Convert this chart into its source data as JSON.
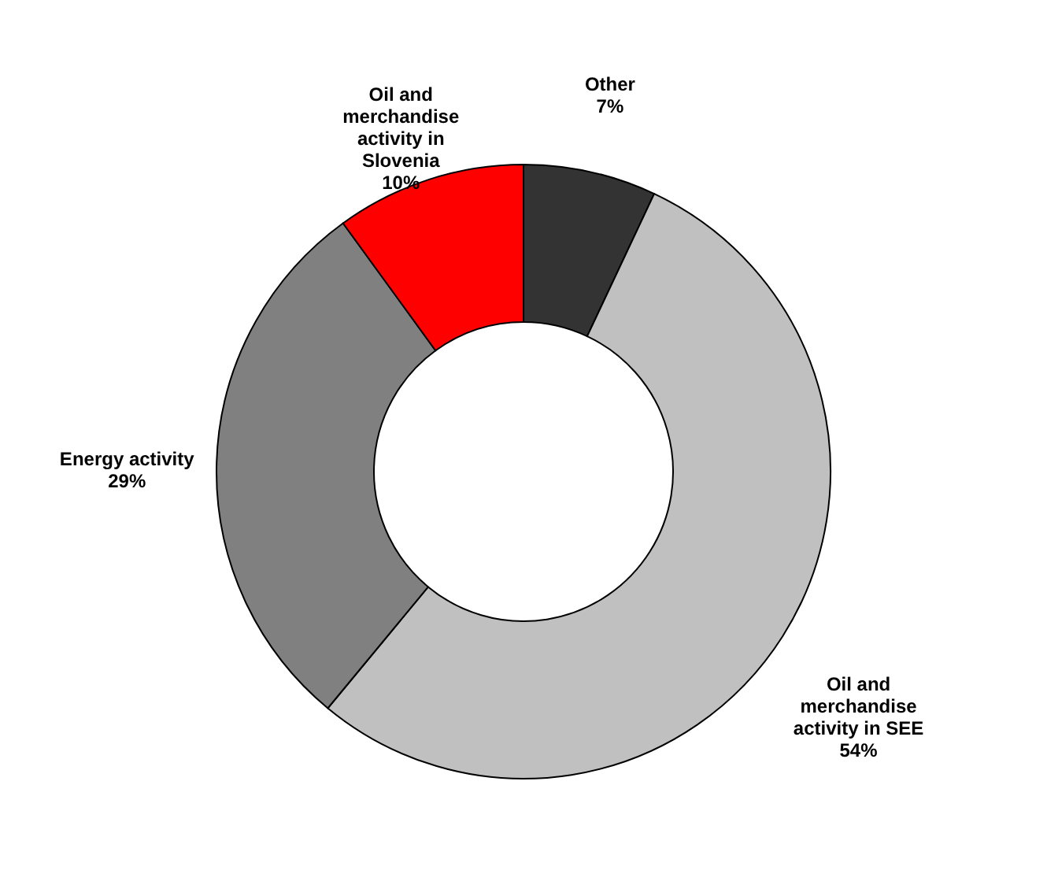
{
  "chart_data": {
    "type": "donut",
    "categories": [
      "Other",
      "Oil and merchandise activity in SEE",
      "Energy activity",
      "Oil and merchandise activity in Slovenia"
    ],
    "values": [
      7,
      54,
      29,
      10
    ],
    "value_labels": [
      "7%",
      "54%",
      "29%",
      "10%"
    ],
    "colors": [
      "#333333",
      "#c0c0c0",
      "#808080",
      "#ff0000"
    ]
  }
}
